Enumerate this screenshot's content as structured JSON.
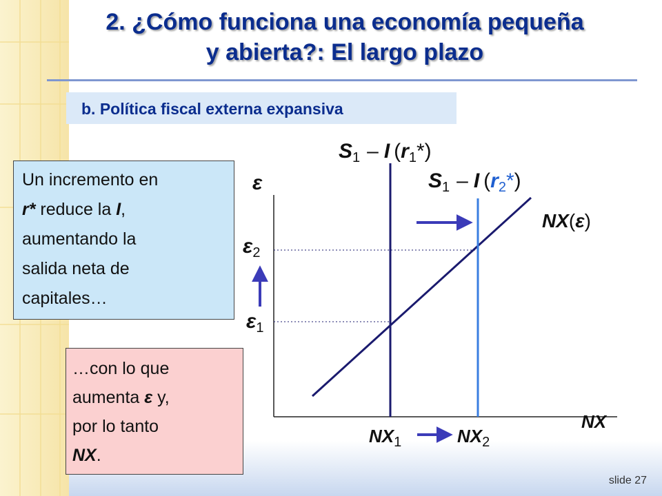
{
  "title": {
    "line1": "2. ¿Cómo funciona una economía pequeña",
    "line2": "y abierta?: El largo plazo"
  },
  "subtitle": "b. Política fiscal externa expansiva",
  "left_box": {
    "l1": "Un incremento en",
    "l2_italic": "r*",
    "l2_rest": " reduce la ",
    "l2_italic2": "I",
    "l2_end": ",",
    "l3": "aumentando la",
    "l4": "salida neta de",
    "l5": "capitales…"
  },
  "bottom_box": {
    "l1": "…con lo que",
    "l2a": "aumenta ",
    "l2_italic": "ε",
    "l2b": "  y,",
    "l3": "por lo tanto",
    "l4_italic": "NX",
    "l4_end": "."
  },
  "graph": {
    "y_axis_label": "ε",
    "x_axis_label": "NX",
    "curve1": {
      "S": "S",
      "S_sub": "1",
      "minus": "–",
      "I": "I",
      "open": "(",
      "r": "r",
      "r_sub": "1",
      "star": "*",
      "close": ")"
    },
    "curve2": {
      "S": "S",
      "S_sub": "1",
      "minus": "–",
      "I": "I",
      "open": "(",
      "r": "r",
      "r_sub": "2",
      "star": "*",
      "close": ")"
    },
    "nx_curve": {
      "name": "NX",
      "open": "(",
      "eps": "ε",
      "close": ")"
    },
    "eps1": {
      "sym": "ε",
      "sub": "1"
    },
    "eps2": {
      "sym": "ε",
      "sub": "2"
    },
    "nx1": {
      "sym": "NX",
      "sub": "1"
    },
    "nx2": {
      "sym": "NX",
      "sub": "2"
    },
    "colors": {
      "axis": "#222222",
      "curve1": "#1a1a6e",
      "curve2": "#3a7ee0",
      "nx_line": "#1a1a6e",
      "arrow": "#3b3bb8",
      "r2_highlight": "#1f5fd0"
    }
  },
  "slide_label": "slide 27"
}
